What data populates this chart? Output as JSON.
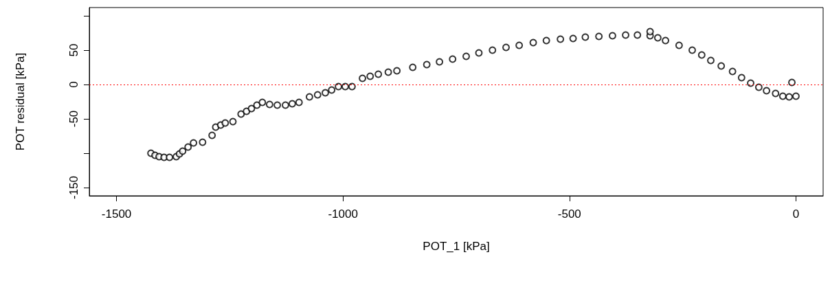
{
  "chart_data": {
    "type": "scatter",
    "xlabel": "POT_1 [kPa]",
    "ylabel": "POT residual [kPa]",
    "xlim": [
      -1560,
      60
    ],
    "ylim": [
      -162,
      112
    ],
    "xticks": [
      -1500,
      -1000,
      -500,
      0
    ],
    "yticks": [
      -150,
      {
        "value": -100,
        "label": null
      },
      -50,
      0,
      50,
      {
        "value": 100,
        "label": null
      }
    ],
    "marker": "circle",
    "series": [
      {
        "color": "#000000",
        "x": [
          -1424,
          -1415,
          -1406,
          -1395,
          -1383,
          -1368,
          -1361,
          -1354,
          -1342,
          -1330,
          -1310,
          -1289,
          -1281,
          -1270,
          -1260,
          -1243,
          -1225,
          -1213,
          -1202,
          -1190,
          -1178,
          -1162,
          -1145,
          -1127,
          -1112,
          -1097,
          -1074,
          -1056,
          -1039,
          -1025,
          -1010,
          -995,
          -980,
          -957,
          -940,
          -922,
          -900,
          -881,
          -846,
          -815,
          -787,
          -758,
          -728,
          -700,
          -670,
          -640,
          -611,
          -580,
          -551,
          -520,
          -492,
          -465,
          -435,
          -405,
          -376,
          -350,
          -322,
          -305,
          -288,
          -258,
          -229,
          -208,
          -188,
          -165,
          -140,
          -120,
          -100,
          -82,
          -65,
          -45,
          -29,
          -15,
          -9,
          0
        ],
        "values": [
          -100,
          -103,
          -105,
          -106,
          -106,
          -105,
          -101,
          -97,
          -91,
          -85,
          -84,
          -74,
          -62,
          -59,
          -56,
          -54,
          -43,
          -39,
          -35,
          -30,
          -26,
          -29,
          -30,
          -30,
          -28,
          -26,
          -18,
          -15,
          -12,
          -8,
          -3,
          -3,
          -3,
          9,
          12,
          15,
          18,
          20,
          25,
          29,
          33,
          37,
          41,
          46,
          50,
          54,
          57,
          61,
          64,
          66,
          67,
          69,
          70,
          71,
          72,
          72,
          71,
          68,
          64,
          57,
          50,
          43,
          35,
          27,
          19,
          10,
          2,
          -4,
          -9,
          -13,
          -17,
          -18,
          3,
          -17
        ]
      },
      {
        "color": "#000000",
        "x": [
          -322
        ],
        "values": [
          77
        ]
      }
    ],
    "ref_lines": [
      {
        "axis": "y",
        "value": 0,
        "color": "#ff0000",
        "line_style": "dotted"
      }
    ]
  }
}
